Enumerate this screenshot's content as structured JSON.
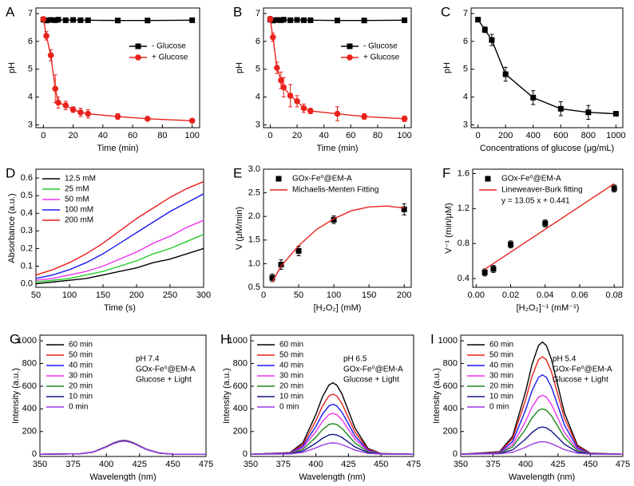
{
  "chart_data": [
    {
      "label": "A",
      "type": "line",
      "xlabel": "Time (min)",
      "ylabel": "pH",
      "xlim": [
        -5,
        105
      ],
      "ylim": [
        2.9,
        7.2
      ],
      "xticks": [
        0,
        20,
        40,
        60,
        80,
        100
      ],
      "yticks": [
        3,
        4,
        5,
        6,
        7
      ],
      "legend": "center right",
      "x": [
        0,
        2,
        5,
        8,
        10,
        15,
        20,
        25,
        30,
        50,
        70,
        100
      ],
      "series": [
        {
          "name": "- Glucose",
          "color": "#000000",
          "marker": "square",
          "values": [
            6.78,
            6.75,
            6.77,
            6.76,
            6.78,
            6.76,
            6.77,
            6.76,
            6.76,
            6.75,
            6.75,
            6.76
          ]
        },
        {
          "name": "+ Glucose",
          "color": "#e8221a",
          "marker": "circle",
          "values": [
            6.8,
            6.2,
            5.5,
            4.3,
            3.8,
            3.7,
            3.55,
            3.45,
            3.4,
            3.3,
            3.22,
            3.15
          ],
          "errors": [
            0.05,
            0.15,
            0.2,
            0.5,
            0.2,
            0.15,
            0.1,
            0.15,
            0.15,
            0.1,
            0.05,
            0.05
          ]
        }
      ]
    },
    {
      "label": "B",
      "type": "line",
      "xlabel": "Time (min)",
      "ylabel": "pH",
      "xlim": [
        -5,
        105
      ],
      "ylim": [
        2.9,
        7.2
      ],
      "xticks": [
        0,
        20,
        40,
        60,
        80,
        100
      ],
      "yticks": [
        3,
        4,
        5,
        6,
        7
      ],
      "legend": "center right",
      "x": [
        0,
        2,
        5,
        8,
        10,
        15,
        20,
        25,
        30,
        50,
        70,
        100
      ],
      "series": [
        {
          "name": "- Glucose",
          "color": "#000000",
          "marker": "square",
          "values": [
            6.78,
            6.75,
            6.77,
            6.76,
            6.78,
            6.76,
            6.77,
            6.76,
            6.76,
            6.75,
            6.75,
            6.76
          ]
        },
        {
          "name": "+ Glucose",
          "color": "#e8221a",
          "marker": "circle",
          "values": [
            6.8,
            6.15,
            5.05,
            4.6,
            4.35,
            4.05,
            3.85,
            3.6,
            3.5,
            3.4,
            3.3,
            3.22
          ],
          "errors": [
            0.1,
            0.15,
            0.2,
            0.3,
            0.35,
            0.4,
            0.2,
            0.15,
            0.1,
            0.25,
            0.1,
            0.1
          ]
        }
      ]
    },
    {
      "label": "C",
      "type": "line",
      "xlabel": "Concentrations of glucose (μg/mL)",
      "ylabel": "pH",
      "xlim": [
        -50,
        1050
      ],
      "ylim": [
        2.9,
        7.2
      ],
      "xticks": [
        0,
        200,
        400,
        600,
        800,
        1000
      ],
      "yticks": [
        3,
        4,
        5,
        6,
        7
      ],
      "x": [
        0,
        50,
        100,
        200,
        400,
        600,
        800,
        1000
      ],
      "series": [
        {
          "color": "#000000",
          "marker": "square",
          "values": [
            6.78,
            6.42,
            6.05,
            4.82,
            3.98,
            3.58,
            3.45,
            3.4
          ],
          "errors": [
            0.05,
            0.1,
            0.2,
            0.25,
            0.25,
            0.25,
            0.25,
            0.05
          ]
        }
      ]
    },
    {
      "label": "D",
      "type": "line",
      "xlabel": "Time (s)",
      "ylabel": "Absorbance (a.u.)",
      "xlim": [
        50,
        300
      ],
      "ylim": [
        -0.02,
        0.65
      ],
      "xticks": [
        50,
        100,
        150,
        200,
        250,
        300
      ],
      "yticks": [
        {
          "value": 0,
          "label": "0.0"
        },
        0.1,
        0.2,
        0.3,
        0.4,
        0.5,
        0.6
      ],
      "legend": "upper left",
      "x": [
        50,
        75,
        100,
        125,
        150,
        175,
        200,
        225,
        250,
        275,
        300
      ],
      "series": [
        {
          "name": "12.5 mM",
          "color": "#000000",
          "values": [
            0,
            0.01,
            0.02,
            0.03,
            0.05,
            0.07,
            0.09,
            0.12,
            0.14,
            0.17,
            0.2
          ]
        },
        {
          "name": "25 mM",
          "color": "#22cc22",
          "values": [
            0.01,
            0.02,
            0.03,
            0.05,
            0.07,
            0.1,
            0.13,
            0.17,
            0.2,
            0.24,
            0.28
          ]
        },
        {
          "name": "50 mM",
          "color": "#ee33ee",
          "values": [
            0.02,
            0.03,
            0.05,
            0.07,
            0.1,
            0.14,
            0.18,
            0.23,
            0.27,
            0.32,
            0.36
          ]
        },
        {
          "name": "100 mM",
          "color": "#1a1aee",
          "values": [
            0.03,
            0.05,
            0.08,
            0.12,
            0.17,
            0.23,
            0.29,
            0.35,
            0.41,
            0.46,
            0.51
          ]
        },
        {
          "name": "200 mM",
          "color": "#ee1a1a",
          "values": [
            0.05,
            0.08,
            0.12,
            0.17,
            0.23,
            0.3,
            0.37,
            0.43,
            0.49,
            0.54,
            0.58
          ]
        }
      ]
    },
    {
      "label": "E",
      "type": "scatter",
      "xlabel": "[H₂O₂] (mM)",
      "ylabel": "V (μM/min)",
      "xlim": [
        0,
        210
      ],
      "ylim": [
        0.5,
        3.0
      ],
      "xticks": [
        0,
        50,
        100,
        150,
        200
      ],
      "yticks": [
        0.5,
        {
          "value": 1,
          "label": "1.0"
        },
        1.5,
        {
          "value": 2,
          "label": "2.0"
        },
        2.5,
        {
          "value": 3,
          "label": "3.0"
        }
      ],
      "legend": "upper left",
      "x": [
        12.5,
        25,
        50,
        100,
        200
      ],
      "series": [
        {
          "name": "GOx-Fe⁰@EM-A",
          "color": "#000000",
          "marker": "square",
          "values": [
            0.7,
            0.98,
            1.27,
            1.93,
            2.15
          ],
          "errors": [
            0.08,
            0.1,
            0.1,
            0.08,
            0.12
          ]
        }
      ],
      "fit": {
        "name": "Michaelis-Menten Fitting",
        "color": "#e8221a",
        "x": [
          12.5,
          25,
          50,
          75,
          100,
          125,
          150,
          175,
          200
        ],
        "values": [
          0.62,
          0.95,
          1.38,
          1.72,
          1.95,
          2.12,
          2.2,
          2.22,
          2.18
        ]
      }
    },
    {
      "label": "F",
      "type": "scatter",
      "xlabel": "[H₂O₂]⁻¹ (mM⁻¹)",
      "ylabel": "V⁻¹ (min/μM)",
      "xlim": [
        -0.002,
        0.085
      ],
      "ylim": [
        0.3,
        1.65
      ],
      "xticks": [
        {
          "value": 0,
          "label": "0.00"
        },
        0.02,
        0.04,
        0.06,
        0.08
      ],
      "yticks": [
        0.4,
        0.8,
        1.2,
        1.6
      ],
      "legend": "upper left",
      "annotation_position": "upper left",
      "x": [
        0.005,
        0.01,
        0.02,
        0.04,
        0.08
      ],
      "series": [
        {
          "name": "GOx-Fe⁰@EM-A",
          "color": "#000000",
          "marker": "square",
          "values": [
            0.47,
            0.51,
            0.79,
            1.03,
            1.43
          ],
          "errors": [
            0.04,
            0.04,
            0.04,
            0.04,
            0.04
          ]
        }
      ],
      "fit": {
        "name": "Lineweaver-Burk fitting",
        "color": "#e8221a",
        "x": [
          0.005,
          0.08
        ],
        "values": [
          0.506,
          1.485
        ]
      },
      "annotations": [
        "y = 13.05 x + 0.441"
      ]
    },
    {
      "label": "G",
      "type": "line",
      "xlabel": "Wavelength (nm)",
      "ylabel": "Intensity (a.u.)",
      "xlim": [
        350,
        475
      ],
      "ylim": [
        -20,
        1050
      ],
      "xticks": [
        350,
        375,
        400,
        425,
        450,
        475
      ],
      "yticks": [
        0,
        200,
        400,
        600,
        800,
        1000
      ],
      "legend": "upper left",
      "annotation_position": "upper right",
      "annotations": [
        "pH 7.4",
        "GOx-Fe⁰@EM-A",
        "Glucose + Light"
      ],
      "x": [
        350,
        380,
        390,
        400,
        405,
        410,
        413,
        416,
        420,
        425,
        430,
        440,
        450,
        475
      ],
      "series": [
        {
          "name": "60 min",
          "color": "#000000",
          "values": [
            0,
            3,
            19,
            68,
            98,
            118,
            122,
            118,
            103,
            74,
            45,
            10,
            1,
            0
          ]
        },
        {
          "name": "50 min",
          "color": "#e8221a",
          "values": [
            0,
            3,
            19,
            67,
            96,
            116,
            120,
            116,
            101,
            73,
            44,
            10,
            1,
            0
          ]
        },
        {
          "name": "40 min",
          "color": "#1a1aee",
          "values": [
            0,
            3,
            19,
            67,
            96,
            116,
            120,
            116,
            101,
            73,
            44,
            10,
            1,
            0
          ]
        },
        {
          "name": "30 min",
          "color": "#ee33ee",
          "values": [
            0,
            3,
            19,
            66,
            95,
            114,
            118,
            114,
            100,
            72,
            43,
            9,
            1,
            0
          ]
        },
        {
          "name": "20 min",
          "color": "#1a8a1a",
          "values": [
            0,
            3,
            19,
            66,
            95,
            114,
            118,
            114,
            100,
            72,
            43,
            9,
            1,
            0
          ]
        },
        {
          "name": "10 min",
          "color": "#14148a",
          "values": [
            0,
            3,
            18,
            64,
            93,
            112,
            116,
            112,
            98,
            70,
            43,
            9,
            1,
            0
          ]
        },
        {
          "name": "0 min",
          "color": "#9a3ae0",
          "values": [
            0,
            3,
            18,
            64,
            92,
            111,
            115,
            111,
            97,
            70,
            42,
            9,
            1,
            0
          ]
        }
      ]
    },
    {
      "label": "H",
      "type": "line",
      "xlabel": "Wavelength (nm)",
      "ylabel": "Intensity (a.u.)",
      "xlim": [
        350,
        475
      ],
      "ylim": [
        -20,
        1050
      ],
      "xticks": [
        350,
        375,
        400,
        425,
        450,
        475
      ],
      "yticks": [
        0,
        200,
        400,
        600,
        800,
        1000
      ],
      "legend": "upper left",
      "annotation_position": "upper right",
      "annotations": [
        "pH 6.5",
        "GOx-Fe⁰@EM-A",
        "Glucose + Light"
      ],
      "x": [
        350,
        380,
        390,
        400,
        405,
        410,
        413,
        416,
        420,
        425,
        430,
        440,
        450,
        475
      ],
      "series": [
        {
          "name": "60 min",
          "color": "#000000",
          "values": [
            0,
            14,
            100,
            350,
            505,
            610,
            630,
            610,
            532,
            382,
            231,
            50,
            6,
            0
          ]
        },
        {
          "name": "50 min",
          "color": "#e8221a",
          "values": [
            0,
            12,
            84,
            295,
            425,
            514,
            530,
            514,
            447,
            322,
            195,
            42,
            5,
            0
          ]
        },
        {
          "name": "40 min",
          "color": "#1a1aee",
          "values": [
            0,
            10,
            70,
            245,
            352,
            426,
            440,
            426,
            371,
            267,
            161,
            35,
            4,
            0
          ]
        },
        {
          "name": "30 min",
          "color": "#ee33ee",
          "values": [
            0,
            8,
            57,
            200,
            288,
            349,
            360,
            349,
            304,
            219,
            132,
            29,
            3,
            0
          ]
        },
        {
          "name": "20 min",
          "color": "#1a8a1a",
          "values": [
            0,
            6,
            43,
            150,
            216,
            262,
            270,
            262,
            228,
            164,
            99,
            22,
            2,
            0
          ]
        },
        {
          "name": "10 min",
          "color": "#14148a",
          "values": [
            0,
            4,
            28,
            97,
            140,
            170,
            175,
            170,
            148,
            106,
            64,
            14,
            2,
            0
          ]
        },
        {
          "name": "0 min",
          "color": "#9a3ae0",
          "values": [
            0,
            2,
            16,
            56,
            80,
            97,
            100,
            97,
            84,
            61,
            37,
            8,
            1,
            0
          ]
        }
      ]
    },
    {
      "label": "I",
      "type": "line",
      "xlabel": "Wavelength (nm)",
      "ylabel": "Intensity (a.u.)",
      "xlim": [
        350,
        475
      ],
      "ylim": [
        -20,
        1050
      ],
      "xticks": [
        350,
        375,
        400,
        425,
        450,
        475
      ],
      "yticks": [
        0,
        200,
        400,
        600,
        800,
        1000
      ],
      "legend": "upper left",
      "annotation_position": "upper right",
      "annotations": [
        "pH 5.4",
        "GOx-Fe⁰@EM-A",
        "Glucose + Light"
      ],
      "x": [
        350,
        380,
        390,
        400,
        405,
        410,
        413,
        416,
        420,
        425,
        430,
        440,
        450,
        475
      ],
      "series": [
        {
          "name": "60 min",
          "color": "#000000",
          "values": [
            0,
            23,
            157,
            550,
            793,
            959,
            990,
            959,
            836,
            601,
            363,
            79,
            9,
            0
          ]
        },
        {
          "name": "50 min",
          "color": "#e8221a",
          "values": [
            0,
            20,
            137,
            478,
            689,
            833,
            860,
            833,
            726,
            522,
            316,
            69,
            8,
            0
          ]
        },
        {
          "name": "40 min",
          "color": "#1a1aee",
          "values": [
            0,
            16,
            111,
            389,
            561,
            678,
            700,
            678,
            591,
            425,
            257,
            56,
            6,
            0
          ]
        },
        {
          "name": "30 min",
          "color": "#ee33ee",
          "values": [
            0,
            12,
            83,
            289,
            417,
            504,
            520,
            504,
            439,
            316,
            191,
            42,
            5,
            0
          ]
        },
        {
          "name": "20 min",
          "color": "#1a8a1a",
          "values": [
            0,
            9,
            64,
            222,
            320,
            388,
            400,
            388,
            338,
            243,
            147,
            32,
            4,
            0
          ]
        },
        {
          "name": "10 min",
          "color": "#14148a",
          "values": [
            0,
            6,
            38,
            133,
            192,
            233,
            240,
            233,
            203,
            146,
            88,
            19,
            2,
            0
          ]
        },
        {
          "name": "0 min",
          "color": "#9a3ae0",
          "values": [
            0,
            3,
            17,
            61,
            88,
            107,
            110,
            107,
            93,
            67,
            40,
            9,
            1,
            0
          ]
        }
      ]
    }
  ]
}
